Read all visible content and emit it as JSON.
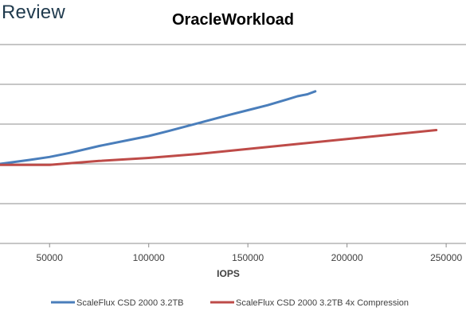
{
  "brand": {
    "text": "Review"
  },
  "chart_data": {
    "type": "line",
    "title": "OracleWorkload",
    "xlabel": "IOPS",
    "ylabel": "",
    "xlim": [
      25000,
      260000
    ],
    "ylim": [
      0,
      10
    ],
    "xticks": [
      50000,
      100000,
      150000,
      200000,
      250000
    ],
    "xtick_labels": [
      "50000",
      "100000",
      "150000",
      "200000",
      "250000"
    ],
    "ygrid": [
      2,
      4,
      6,
      8,
      10
    ],
    "grid": true,
    "legend_position": "bottom",
    "series": [
      {
        "name": "ScaleFlux CSD 2000 3.2TB",
        "color": "#4a7ebb",
        "x": [
          25000,
          40000,
          50000,
          60000,
          75000,
          90000,
          100000,
          110000,
          125000,
          140000,
          150000,
          160000,
          170000,
          175000,
          180000,
          184000
        ],
        "y": [
          4.0,
          4.2,
          4.35,
          4.55,
          4.9,
          5.2,
          5.4,
          5.65,
          6.05,
          6.45,
          6.7,
          6.95,
          7.25,
          7.4,
          7.5,
          7.65
        ]
      },
      {
        "name": "ScaleFlux CSD 2000 3.2TB 4x Compression",
        "color": "#be4b48",
        "x": [
          25000,
          50000,
          75000,
          100000,
          125000,
          150000,
          175000,
          200000,
          225000,
          245000
        ],
        "y": [
          3.95,
          3.95,
          4.15,
          4.3,
          4.5,
          4.75,
          5.0,
          5.25,
          5.5,
          5.7
        ]
      }
    ]
  }
}
